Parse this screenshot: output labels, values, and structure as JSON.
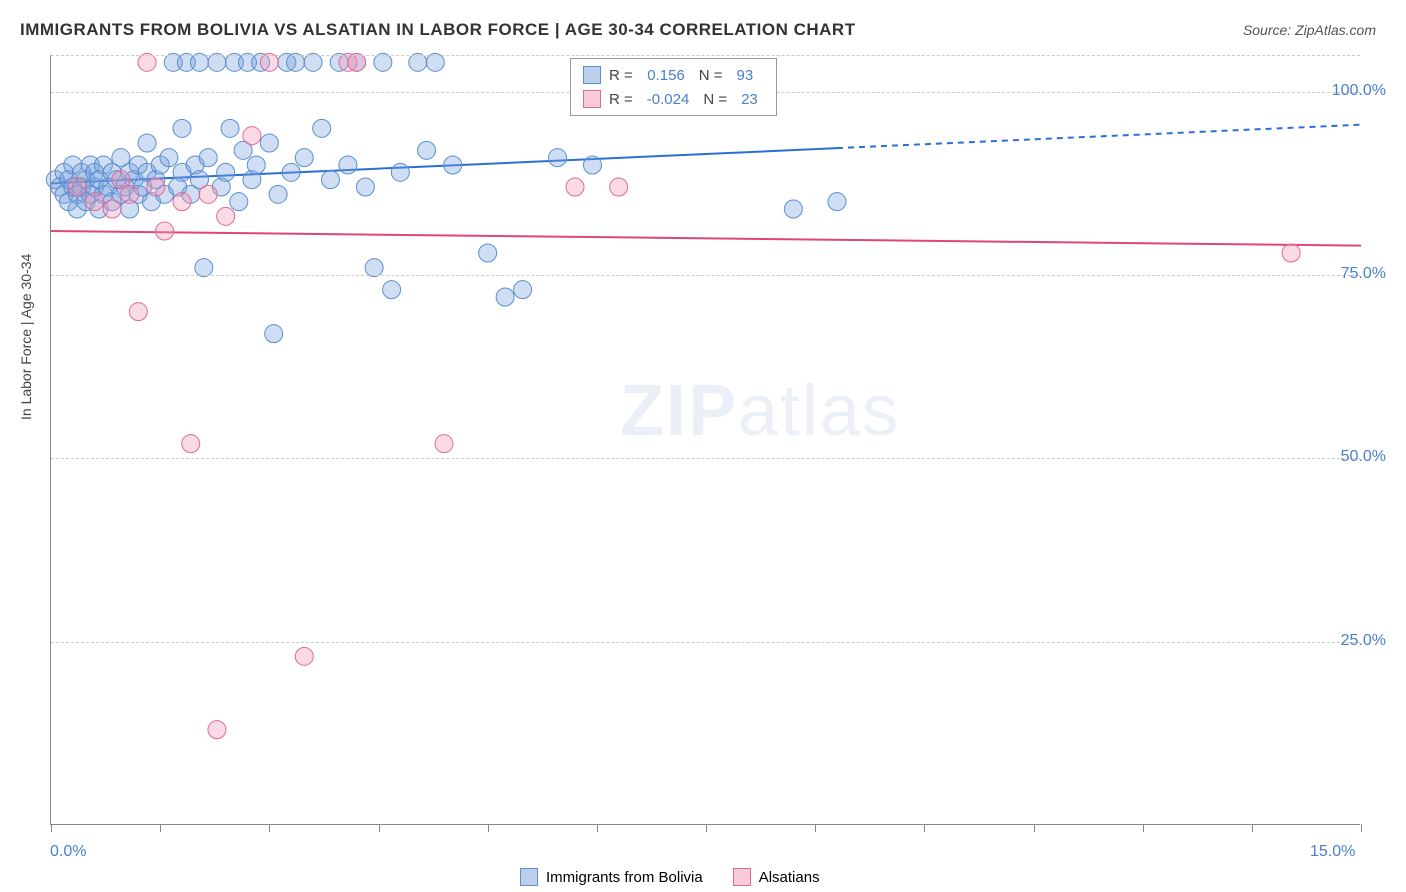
{
  "title": "IMMIGRANTS FROM BOLIVIA VS ALSATIAN IN LABOR FORCE | AGE 30-34 CORRELATION CHART",
  "source_label": "Source: ZipAtlas.com",
  "y_axis_label": "In Labor Force | Age 30-34",
  "watermark": {
    "part1": "ZIP",
    "part2": "atlas"
  },
  "chart": {
    "type": "scatter",
    "xlim": [
      0,
      15
    ],
    "ylim": [
      0,
      105
    ],
    "x_tick_positions": [
      0,
      1.25,
      2.5,
      3.75,
      5,
      6.25,
      7.5,
      8.75,
      10,
      11.25,
      12.5,
      13.75,
      15
    ],
    "x_tick_labels": {
      "0": "0.0%",
      "15": "15.0%"
    },
    "y_gridlines": [
      25,
      50,
      75,
      100,
      105
    ],
    "y_tick_labels": {
      "25": "25.0%",
      "50": "50.0%",
      "75": "75.0%",
      "100": "100.0%"
    },
    "background_color": "#ffffff",
    "grid_color": "#cccccc",
    "axis_color": "#888888",
    "series": [
      {
        "name": "Immigrants from Bolivia",
        "color_fill": "rgba(120,160,220,0.35)",
        "color_stroke": "#5a8fd0",
        "marker_radius": 9,
        "R": "0.156",
        "N": "93",
        "regression": {
          "x1": 0,
          "y1": 87.5,
          "x2": 15,
          "y2": 95.5,
          "color": "#2a6fd6",
          "width": 2,
          "solid_until_x": 9.0
        },
        "points": [
          [
            0.05,
            88
          ],
          [
            0.1,
            87
          ],
          [
            0.15,
            86
          ],
          [
            0.15,
            89
          ],
          [
            0.2,
            85
          ],
          [
            0.2,
            88
          ],
          [
            0.25,
            87
          ],
          [
            0.25,
            90
          ],
          [
            0.3,
            86
          ],
          [
            0.3,
            84
          ],
          [
            0.35,
            89
          ],
          [
            0.35,
            87
          ],
          [
            0.4,
            88
          ],
          [
            0.4,
            85
          ],
          [
            0.45,
            90
          ],
          [
            0.45,
            86
          ],
          [
            0.5,
            87
          ],
          [
            0.5,
            89
          ],
          [
            0.55,
            84
          ],
          [
            0.55,
            88
          ],
          [
            0.6,
            86
          ],
          [
            0.6,
            90
          ],
          [
            0.65,
            87
          ],
          [
            0.7,
            85
          ],
          [
            0.7,
            89
          ],
          [
            0.75,
            88
          ],
          [
            0.8,
            86
          ],
          [
            0.8,
            91
          ],
          [
            0.85,
            87
          ],
          [
            0.9,
            89
          ],
          [
            0.9,
            84
          ],
          [
            0.95,
            88
          ],
          [
            1.0,
            90
          ],
          [
            1.0,
            86
          ],
          [
            1.05,
            87
          ],
          [
            1.1,
            89
          ],
          [
            1.1,
            93
          ],
          [
            1.15,
            85
          ],
          [
            1.2,
            88
          ],
          [
            1.25,
            90
          ],
          [
            1.3,
            86
          ],
          [
            1.35,
            91
          ],
          [
            1.4,
            104
          ],
          [
            1.45,
            87
          ],
          [
            1.5,
            95
          ],
          [
            1.5,
            89
          ],
          [
            1.55,
            104
          ],
          [
            1.6,
            86
          ],
          [
            1.65,
            90
          ],
          [
            1.7,
            104
          ],
          [
            1.7,
            88
          ],
          [
            1.75,
            76
          ],
          [
            1.8,
            91
          ],
          [
            1.9,
            104
          ],
          [
            1.95,
            87
          ],
          [
            2.0,
            89
          ],
          [
            2.05,
            95
          ],
          [
            2.1,
            104
          ],
          [
            2.15,
            85
          ],
          [
            2.2,
            92
          ],
          [
            2.25,
            104
          ],
          [
            2.3,
            88
          ],
          [
            2.35,
            90
          ],
          [
            2.4,
            104
          ],
          [
            2.5,
            93
          ],
          [
            2.55,
            67
          ],
          [
            2.6,
            86
          ],
          [
            2.7,
            104
          ],
          [
            2.75,
            89
          ],
          [
            2.8,
            104
          ],
          [
            2.9,
            91
          ],
          [
            3.0,
            104
          ],
          [
            3.1,
            95
          ],
          [
            3.2,
            88
          ],
          [
            3.3,
            104
          ],
          [
            3.4,
            90
          ],
          [
            3.5,
            104
          ],
          [
            3.6,
            87
          ],
          [
            3.7,
            76
          ],
          [
            3.8,
            104
          ],
          [
            3.9,
            73
          ],
          [
            4.0,
            89
          ],
          [
            4.2,
            104
          ],
          [
            4.3,
            92
          ],
          [
            4.4,
            104
          ],
          [
            4.6,
            90
          ],
          [
            5.0,
            78
          ],
          [
            5.2,
            72
          ],
          [
            5.4,
            73
          ],
          [
            5.8,
            91
          ],
          [
            6.2,
            90
          ],
          [
            8.5,
            84
          ],
          [
            9.0,
            85
          ]
        ]
      },
      {
        "name": "Alsatians",
        "color_fill": "rgba(240,150,180,0.35)",
        "color_stroke": "#e06a9a",
        "marker_radius": 9,
        "R": "-0.024",
        "N": "23",
        "regression": {
          "x1": 0,
          "y1": 81,
          "x2": 15,
          "y2": 79,
          "color": "#e0457a",
          "width": 2,
          "solid_until_x": 15
        },
        "points": [
          [
            0.3,
            87
          ],
          [
            0.5,
            85
          ],
          [
            0.7,
            84
          ],
          [
            0.8,
            88
          ],
          [
            0.9,
            86
          ],
          [
            1.0,
            70
          ],
          [
            1.1,
            104
          ],
          [
            1.2,
            87
          ],
          [
            1.3,
            81
          ],
          [
            1.5,
            85
          ],
          [
            1.6,
            52
          ],
          [
            1.8,
            86
          ],
          [
            1.9,
            13
          ],
          [
            2.0,
            83
          ],
          [
            2.3,
            94
          ],
          [
            2.5,
            104
          ],
          [
            2.9,
            23
          ],
          [
            3.4,
            104
          ],
          [
            3.5,
            104
          ],
          [
            4.5,
            52
          ],
          [
            6.0,
            87
          ],
          [
            6.5,
            87
          ],
          [
            14.2,
            78
          ]
        ]
      }
    ]
  },
  "legend_top": {
    "rows": [
      {
        "swatch_fill": "rgba(120,160,220,0.5)",
        "swatch_stroke": "#5a8fd0",
        "r_label": "R =",
        "r_val": "0.156",
        "n_label": "N =",
        "n_val": "93"
      },
      {
        "swatch_fill": "rgba(240,150,180,0.5)",
        "swatch_stroke": "#e06a9a",
        "r_label": "R =",
        "r_val": "-0.024",
        "n_label": "N =",
        "n_val": "23"
      }
    ]
  },
  "legend_bottom": {
    "items": [
      {
        "swatch_fill": "rgba(120,160,220,0.5)",
        "swatch_stroke": "#5a8fd0",
        "label": "Immigrants from Bolivia"
      },
      {
        "swatch_fill": "rgba(240,150,180,0.5)",
        "swatch_stroke": "#e06a9a",
        "label": "Alsatians"
      }
    ]
  }
}
